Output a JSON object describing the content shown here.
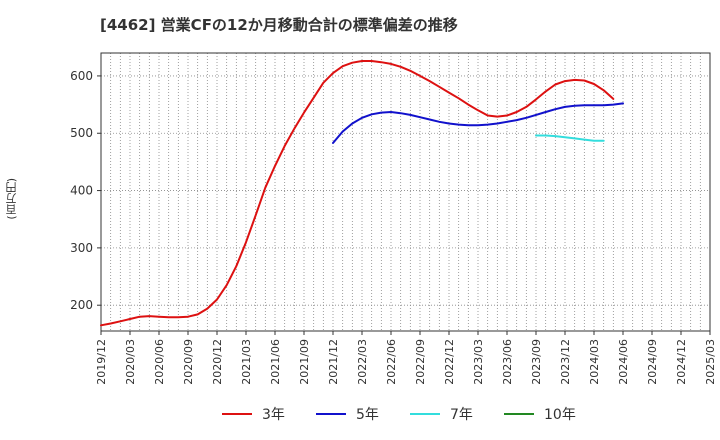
{
  "chart_data": {
    "type": "line",
    "title": "[4462]  営業CFの12か月移動合計の標準偏差の推移",
    "ylabel": "(百万円)",
    "xlabel": "",
    "ylim": [
      155,
      640
    ],
    "yticks": [
      200,
      300,
      400,
      500,
      600
    ],
    "xticks": [
      "2019/12",
      "2020/03",
      "2020/06",
      "2020/09",
      "2020/12",
      "2021/03",
      "2021/06",
      "2021/09",
      "2021/12",
      "2022/03",
      "2022/06",
      "2022/09",
      "2022/12",
      "2023/03",
      "2023/06",
      "2023/09",
      "2023/12",
      "2024/03",
      "2024/06",
      "2024/09",
      "2024/12",
      "2025/03"
    ],
    "grid": true,
    "legend_position": "bottom",
    "series": [
      {
        "name": "3年",
        "color": "#dd1111",
        "points": [
          [
            "2019/12",
            165
          ],
          [
            "2020/01",
            168
          ],
          [
            "2020/02",
            172
          ],
          [
            "2020/03",
            176
          ],
          [
            "2020/04",
            180
          ],
          [
            "2020/05",
            181
          ],
          [
            "2020/06",
            180
          ],
          [
            "2020/07",
            179
          ],
          [
            "2020/08",
            179
          ],
          [
            "2020/09",
            180
          ],
          [
            "2020/10",
            184
          ],
          [
            "2020/11",
            194
          ],
          [
            "2020/12",
            210
          ],
          [
            "2021/01",
            235
          ],
          [
            "2021/02",
            268
          ],
          [
            "2021/03",
            310
          ],
          [
            "2021/04",
            357
          ],
          [
            "2021/05",
            405
          ],
          [
            "2021/06",
            443
          ],
          [
            "2021/07",
            478
          ],
          [
            "2021/08",
            508
          ],
          [
            "2021/09",
            536
          ],
          [
            "2021/10",
            562
          ],
          [
            "2021/11",
            588
          ],
          [
            "2021/12",
            605
          ],
          [
            "2022/01",
            617
          ],
          [
            "2022/02",
            623
          ],
          [
            "2022/03",
            626
          ],
          [
            "2022/04",
            626
          ],
          [
            "2022/05",
            624
          ],
          [
            "2022/06",
            621
          ],
          [
            "2022/07",
            616
          ],
          [
            "2022/08",
            609
          ],
          [
            "2022/09",
            600
          ],
          [
            "2022/10",
            591
          ],
          [
            "2022/11",
            581
          ],
          [
            "2022/12",
            571
          ],
          [
            "2023/01",
            561
          ],
          [
            "2023/02",
            550
          ],
          [
            "2023/03",
            540
          ],
          [
            "2023/04",
            531
          ],
          [
            "2023/05",
            529
          ],
          [
            "2023/06",
            531
          ],
          [
            "2023/07",
            537
          ],
          [
            "2023/08",
            546
          ],
          [
            "2023/09",
            559
          ],
          [
            "2023/10",
            573
          ],
          [
            "2023/11",
            585
          ],
          [
            "2023/12",
            591
          ],
          [
            "2024/01",
            593
          ],
          [
            "2024/02",
            592
          ],
          [
            "2024/03",
            586
          ],
          [
            "2024/04",
            575
          ],
          [
            "2024/05",
            560
          ]
        ]
      },
      {
        "name": "5年",
        "color": "#1111cc",
        "points": [
          [
            "2021/12",
            483
          ],
          [
            "2022/01",
            503
          ],
          [
            "2022/02",
            517
          ],
          [
            "2022/03",
            527
          ],
          [
            "2022/04",
            533
          ],
          [
            "2022/05",
            536
          ],
          [
            "2022/06",
            537
          ],
          [
            "2022/07",
            535
          ],
          [
            "2022/08",
            532
          ],
          [
            "2022/09",
            528
          ],
          [
            "2022/10",
            524
          ],
          [
            "2022/11",
            520
          ],
          [
            "2022/12",
            517
          ],
          [
            "2023/01",
            515
          ],
          [
            "2023/02",
            514
          ],
          [
            "2023/03",
            514
          ],
          [
            "2023/04",
            515
          ],
          [
            "2023/05",
            517
          ],
          [
            "2023/06",
            520
          ],
          [
            "2023/07",
            523
          ],
          [
            "2023/08",
            527
          ],
          [
            "2023/09",
            532
          ],
          [
            "2023/10",
            537
          ],
          [
            "2023/11",
            542
          ],
          [
            "2023/12",
            546
          ],
          [
            "2024/01",
            548
          ],
          [
            "2024/02",
            549
          ],
          [
            "2024/03",
            549
          ],
          [
            "2024/04",
            549
          ],
          [
            "2024/05",
            550
          ],
          [
            "2024/06",
            552
          ]
        ]
      },
      {
        "name": "7年",
        "color": "#33dddd",
        "points": [
          [
            "2023/09",
            496
          ],
          [
            "2023/10",
            496
          ],
          [
            "2023/11",
            495
          ],
          [
            "2023/12",
            493
          ],
          [
            "2024/01",
            491
          ],
          [
            "2024/02",
            489
          ],
          [
            "2024/03",
            487
          ],
          [
            "2024/04",
            487
          ]
        ]
      },
      {
        "name": "10年",
        "color": "#228822",
        "points": []
      }
    ]
  }
}
